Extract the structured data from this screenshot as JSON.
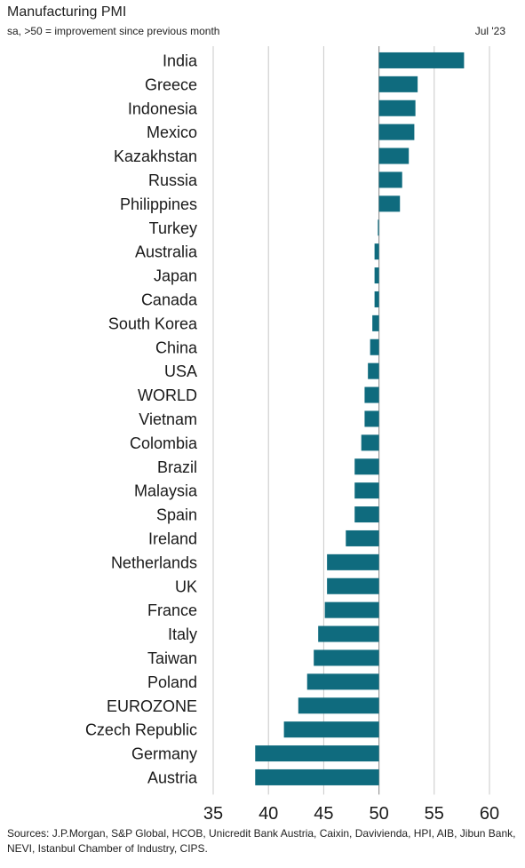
{
  "header": {
    "title": "Manufacturing PMI",
    "subtitle": "sa, >50 = improvement since previous month",
    "period": "Jul '23"
  },
  "footer": {
    "sources": "Sources: J.P.Morgan, S&P Global, HCOB, Unicredit Bank Austria, Caixin, Davivienda, HPI, AIB, Jibun Bank, NEVI, Istanbul Chamber of Industry, CIPS."
  },
  "colors": {
    "bar": "#0f6b7e",
    "grid": "#c8c8c8",
    "baseline": "#9a9a9a"
  },
  "chart_data": {
    "type": "bar",
    "orientation": "horizontal",
    "baseline": 50,
    "title": "Manufacturing PMI",
    "xlabel": "",
    "ylabel": "",
    "xlim": [
      35,
      60
    ],
    "xticks": [
      35,
      40,
      45,
      50,
      55,
      60
    ],
    "grid": true,
    "categories": [
      "India",
      "Greece",
      "Indonesia",
      "Mexico",
      "Kazakhstan",
      "Russia",
      "Philippines",
      "Turkey",
      "Australia",
      "Japan",
      "Canada",
      "South Korea",
      "China",
      "USA",
      "WORLD",
      "Vietnam",
      "Colombia",
      "Brazil",
      "Malaysia",
      "Spain",
      "Ireland",
      "Netherlands",
      "UK",
      "France",
      "Italy",
      "Taiwan",
      "Poland",
      "EUROZONE",
      "Czech Republic",
      "Germany",
      "Austria"
    ],
    "values": [
      57.7,
      53.5,
      53.3,
      53.2,
      52.7,
      52.1,
      51.9,
      49.9,
      49.6,
      49.6,
      49.6,
      49.4,
      49.2,
      49.0,
      48.7,
      48.7,
      48.4,
      47.8,
      47.8,
      47.8,
      47.0,
      45.3,
      45.3,
      45.1,
      44.5,
      44.1,
      43.5,
      42.7,
      41.4,
      38.8,
      38.8
    ]
  }
}
